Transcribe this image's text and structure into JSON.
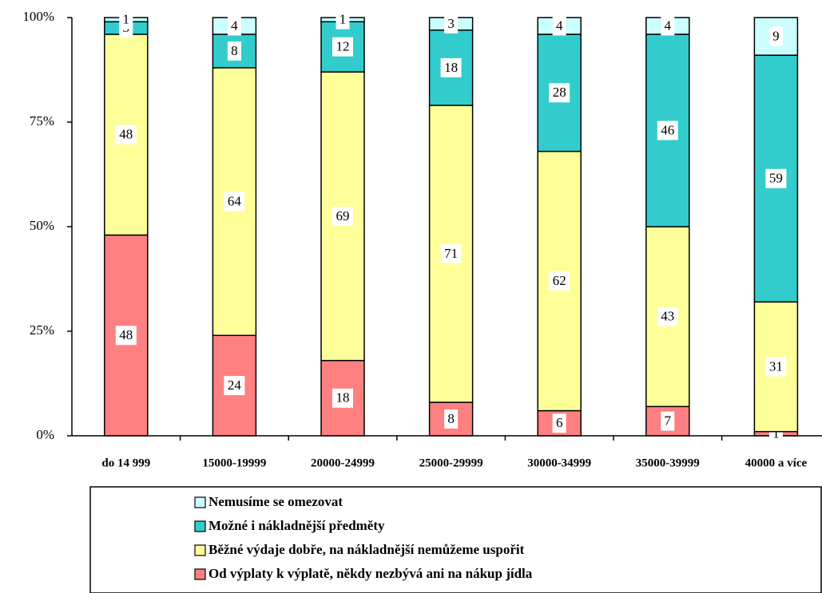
{
  "chart_data": {
    "type": "stacked_bar",
    "categories": [
      "do 14 999",
      "15000-19999",
      "20000-24999",
      "25000-29999",
      "30000-34999",
      "35000-39999",
      "40000 a více"
    ],
    "series": [
      {
        "name": "Od výplaty k výplatě, někdy nezbývá ani na nákup jídla",
        "color": "#ff8080",
        "values": [
          48,
          24,
          18,
          8,
          6,
          7,
          1
        ]
      },
      {
        "name": "Běžné výdaje dobře, na nákladnější nemůžeme uspořit",
        "color": "#ffff99",
        "values": [
          48,
          64,
          69,
          71,
          62,
          43,
          31
        ]
      },
      {
        "name": "Možné i nákladnější předměty",
        "color": "#33cccc",
        "values": [
          3,
          8,
          12,
          18,
          28,
          46,
          59
        ]
      },
      {
        "name": "Nemusíme se omezovat",
        "color": "#ccffff",
        "values": [
          1,
          4,
          1,
          3,
          4,
          4,
          9
        ]
      }
    ],
    "ylim": [
      0,
      100
    ],
    "yticks": [
      {
        "value": 0,
        "label": "0%"
      },
      {
        "value": 25,
        "label": "25%"
      },
      {
        "value": 50,
        "label": "50%"
      },
      {
        "value": 75,
        "label": "75%"
      },
      {
        "value": 100,
        "label": "100%"
      }
    ],
    "legend": "bottom"
  }
}
